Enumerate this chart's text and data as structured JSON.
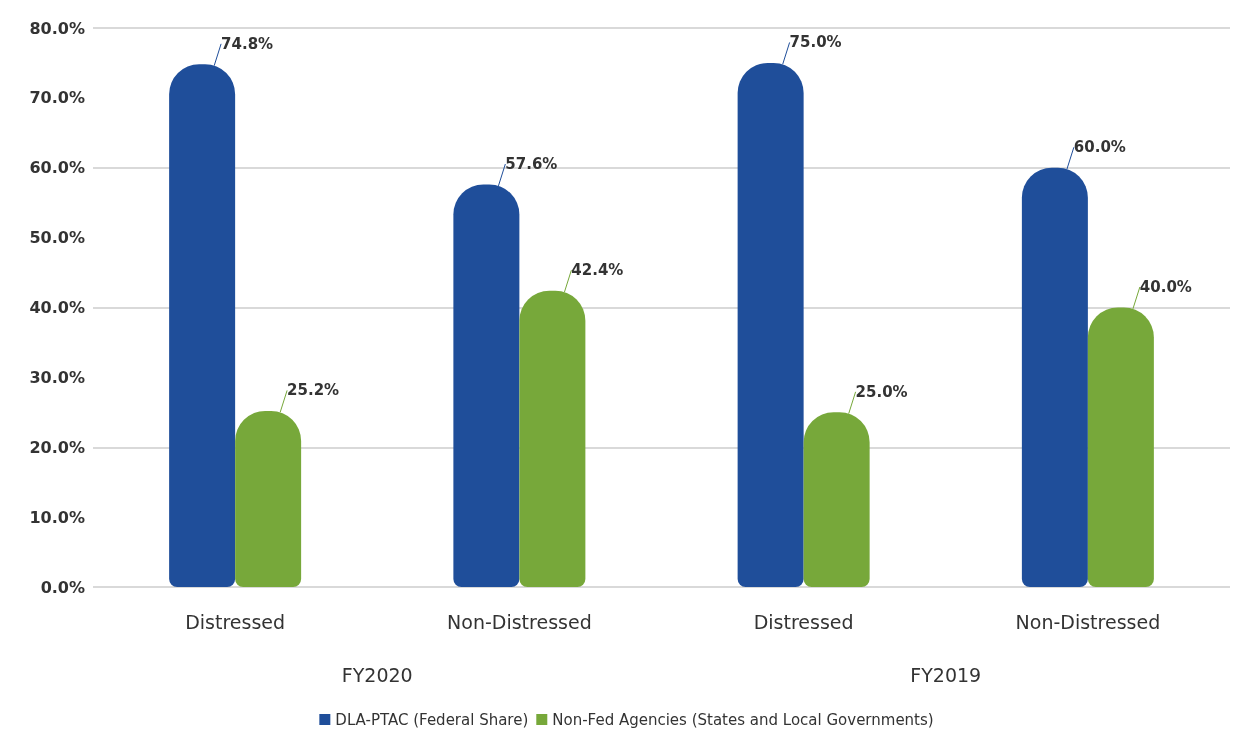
{
  "chart_data": {
    "type": "bar",
    "categories": [
      "Distressed",
      "Non-Distressed",
      "Distressed",
      "Non-Distressed"
    ],
    "series": [
      {
        "name": "DLA-PTAC (Federal Share)",
        "color": "#1f4e9a",
        "values": [
          74.8,
          57.6,
          75.0,
          60.0
        ],
        "value_labels": [
          "74.8%",
          "57.6%",
          "75.0%",
          "60.0%"
        ]
      },
      {
        "name": "Non-Fed Agencies (States and Local Governments)",
        "color": "#77a83a",
        "values": [
          25.2,
          42.4,
          25.0,
          40.0
        ],
        "value_labels": [
          "25.2%",
          "42.4%",
          "25.0%",
          "40.0%"
        ]
      }
    ],
    "annotations": [
      "FY2020",
      "FY2019"
    ],
    "ylim": [
      0,
      80
    ],
    "yticks": [
      {
        "value": 0,
        "label": "0.0%"
      },
      {
        "value": 10,
        "label": "10.0%"
      },
      {
        "value": 20,
        "label": "20.0%"
      },
      {
        "value": 30,
        "label": "30.0%"
      },
      {
        "value": 40,
        "label": "40.0%"
      },
      {
        "value": 50,
        "label": "50.0%"
      },
      {
        "value": 60,
        "label": "60.0%"
      },
      {
        "value": 70,
        "label": "70.0%"
      },
      {
        "value": 80,
        "label": "80.0%"
      }
    ],
    "grid": "y",
    "legend": "bottom"
  }
}
